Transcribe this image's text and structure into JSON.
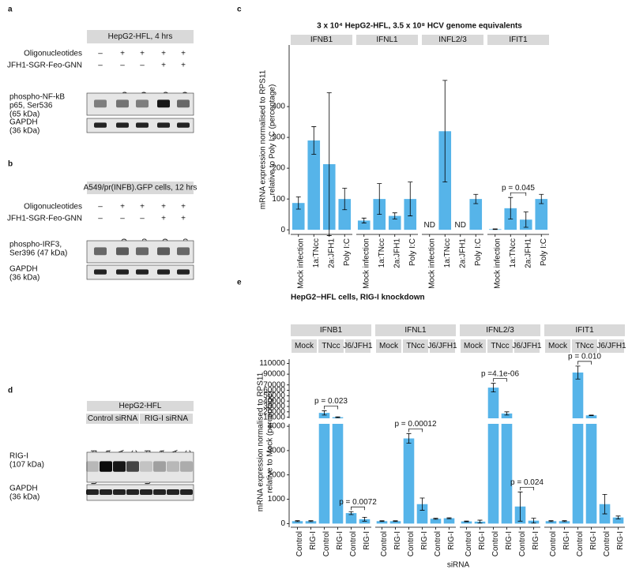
{
  "panels": [
    {
      "label": "a",
      "header": "HepG2-HFL, 4 hrs",
      "rows": [
        {
          "label": "Oligonucleotides",
          "signs": [
            "–",
            "+",
            "+",
            "+",
            "+"
          ]
        },
        {
          "label": "JFH1-SGR-Feo-GNN",
          "signs": [
            "–",
            "–",
            "–",
            "+",
            "+"
          ]
        }
      ],
      "lanes": [
        null,
        "5'ppp",
        "5'FAD",
        "5'ppp",
        "5'FAD"
      ],
      "bands": [
        {
          "label": [
            "phospho-NF-kB",
            "p65, Ser536",
            "(65 kDa)"
          ]
        },
        {
          "label": [
            "GAPDH",
            "(36 kDa)"
          ]
        }
      ]
    },
    {
      "label": "b",
      "header": "A549/pr(INFB).GFP cells, 12 hrs",
      "rows": [
        {
          "label": "Oligonucleotides",
          "signs": [
            "–",
            "+",
            "+",
            "+",
            "+"
          ]
        },
        {
          "label": "JFH1-SGR-Feo-GNN",
          "signs": [
            "–",
            "–",
            "–",
            "+",
            "+"
          ]
        }
      ],
      "lanes": [
        null,
        "5'FAD",
        "5'ppp",
        "5'FAD",
        "5'ppp"
      ],
      "bands": [
        {
          "label": [
            "phospho-IRF3,",
            "Ser396 (47 kDa)"
          ]
        },
        {
          "label": [
            "GAPDH",
            "(36 kDa)"
          ]
        }
      ]
    },
    {
      "label": "d",
      "header": "HepG2-HFL",
      "subgroups": [
        {
          "name": "Control siRNA",
          "lanes": [
            "Untreated",
            "IFNa",
            "RNA",
            "Poly I:C"
          ]
        },
        {
          "name": "RIG-I siRNA",
          "lanes": [
            "Untreated",
            "IFNa",
            "RNA",
            "Poly I:C"
          ]
        }
      ],
      "bands": [
        {
          "label": [
            "RIG-I",
            "(107 kDa)"
          ]
        },
        {
          "label": [
            "GAPDH",
            "(36 kDa)"
          ]
        }
      ]
    }
  ],
  "chart_data": [
    {
      "type": "bar",
      "panel_label": "c",
      "title": "3 x 10⁴ HepG2-HFL, 3.5 x 10⁸ HCV genome equivalents",
      "y_label": [
        "mRNA expression normalised to RPS11",
        "relative to Poly I:C (percentage)"
      ],
      "color": "#56b4e9",
      "ylim": [
        -15,
        600
      ],
      "yticks": [
        0,
        100,
        200,
        300,
        400
      ],
      "facets": [
        {
          "name": "IFNB1",
          "categories": [
            "Mock infection",
            "1a:TNcc",
            "2a:JFH1",
            "Poly I:C"
          ],
          "values": [
            87,
            290,
            213,
            100
          ],
          "errors": [
            20,
            45,
            232,
            35
          ]
        },
        {
          "name": "IFNL1",
          "categories": [
            "Mock infection",
            "1a:TNcc",
            "2a:JFH1",
            "Poly I:C"
          ],
          "values": [
            30,
            100,
            45,
            100
          ],
          "errors": [
            8,
            50,
            10,
            55
          ]
        },
        {
          "name": "INFL2/3",
          "categories": [
            "Mock infection",
            "1a:TNcc",
            "2a:JFH1",
            "Poly I:C"
          ],
          "values": [
            null,
            320,
            null,
            100
          ],
          "errors": [
            null,
            165,
            null,
            15
          ],
          "value_labels": [
            "ND",
            null,
            "ND",
            null
          ]
        },
        {
          "name": "IFIT1",
          "categories": [
            "Mock infection",
            "1a:TNcc",
            "2a:JFH1",
            "Poly I:C"
          ],
          "values": [
            2,
            70,
            33,
            100
          ],
          "errors": [
            1,
            35,
            25,
            15
          ],
          "p_label": "p = 0.045"
        }
      ]
    },
    {
      "type": "bar",
      "panel_label": "e",
      "title": "HepG2−HFL cells, RIG-I knockdown",
      "y_label": [
        "mRNA expression normalised to RPS11",
        "relative to Mock (percentage)"
      ],
      "x_label": "siRNA",
      "color": "#56b4e9",
      "y_segments": [
        {
          "ylim": [
            -150,
            4100
          ],
          "yticks": [
            0,
            1000,
            2000,
            3000,
            4000
          ]
        },
        {
          "ylim": [
            8000,
            118000
          ],
          "yticks": [
            10000,
            20000,
            30000,
            40000,
            50000,
            60000,
            70000,
            90000,
            110000
          ]
        }
      ],
      "facets": [
        {
          "name": "IFNB1",
          "groups": [
            {
              "name": "Mock",
              "categories": [
                "Control",
                "RIG-I"
              ],
              "values": [
                100,
                100
              ],
              "errors": [
                20,
                20
              ]
            },
            {
              "name": "TNcc",
              "categories": [
                "Control",
                "RIG-I"
              ],
              "values": [
                18000,
                10000
              ],
              "errors": [
                4000,
                800
              ],
              "p_label": "p = 0.023"
            },
            {
              "name": "J6/JFH1",
              "categories": [
                "Control",
                "RIG-I"
              ],
              "values": [
                430,
                180
              ],
              "errors": [
                60,
                80
              ],
              "p_label": "p = 0.0072"
            }
          ]
        },
        {
          "name": "IFNL1",
          "groups": [
            {
              "name": "Mock",
              "categories": [
                "Control",
                "RIG-I"
              ],
              "values": [
                100,
                100
              ],
              "errors": [
                15,
                15
              ]
            },
            {
              "name": "TNcc",
              "categories": [
                "Control",
                "RIG-I"
              ],
              "values": [
                3500,
                800
              ],
              "errors": [
                200,
                250
              ],
              "p_label": "p = 0.00012"
            },
            {
              "name": "J6/JFH1",
              "categories": [
                "Control",
                "RIG-I"
              ],
              "values": [
                200,
                220
              ],
              "errors": [
                20,
                20
              ]
            }
          ]
        },
        {
          "name": "IFNL2/3",
          "groups": [
            {
              "name": "Mock",
              "categories": [
                "Control",
                "RIG-I"
              ],
              "values": [
                90,
                80
              ],
              "errors": [
                15,
                60
              ]
            },
            {
              "name": "TNcc",
              "categories": [
                "Control",
                "RIG-I"
              ],
              "values": [
                65000,
                17000
              ],
              "errors": [
                8000,
                3000
              ],
              "p_label": "p =4.1e-06"
            },
            {
              "name": "J6/JFH1",
              "categories": [
                "Control",
                "RIG-I"
              ],
              "values": [
                700,
                120
              ],
              "errors": [
                600,
                100
              ],
              "p_label": "p = 0.024"
            }
          ]
        },
        {
          "name": "IFIT1",
          "groups": [
            {
              "name": "Mock",
              "categories": [
                "Control",
                "RIG-I"
              ],
              "values": [
                100,
                100
              ],
              "errors": [
                20,
                20
              ]
            },
            {
              "name": "TNcc",
              "categories": [
                "Control",
                "RIG-I"
              ],
              "values": [
                93000,
                13500
              ],
              "errors": [
                12000,
                500
              ],
              "p_label": "p = 0.010"
            },
            {
              "name": "J6/JFH1",
              "categories": [
                "Control",
                "RIG-I"
              ],
              "values": [
                800,
                250
              ],
              "errors": [
                400,
                60
              ]
            }
          ]
        }
      ]
    }
  ]
}
